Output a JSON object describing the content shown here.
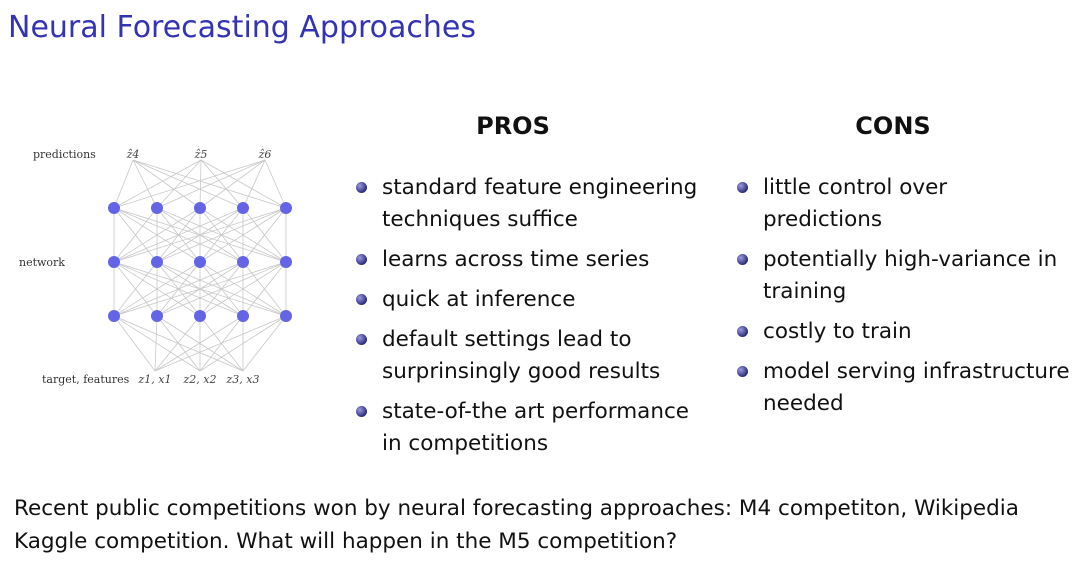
{
  "title": "Neural Forecasting Approaches",
  "diagram": {
    "labels": {
      "predictions": "predictions",
      "network": "network",
      "inputs": "target, features"
    },
    "outputs": [
      "ẑ4",
      "ẑ5",
      "ẑ6"
    ],
    "inputs": [
      "z1, x1",
      "z2, x2",
      "z3, x3"
    ],
    "node_color": "#6464e6"
  },
  "pros": {
    "heading": "PROS",
    "items": [
      [
        "standard feature engineering",
        "techniques suffice"
      ],
      [
        "learns across time series"
      ],
      [
        "quick at inference"
      ],
      [
        "default settings lead to",
        "surprinsingly good results"
      ],
      [
        "state-of-the art performance",
        "in competitions"
      ]
    ]
  },
  "cons": {
    "heading": "CONS",
    "items": [
      [
        "little control over",
        "predictions"
      ],
      [
        "potentially high-variance in",
        "training"
      ],
      [
        "costly to train"
      ],
      [
        "model serving infrastructure",
        "needed"
      ]
    ]
  },
  "footer": {
    "line1": "Recent public competitions won by neural forecasting approaches: M4 competiton, Wikipedia",
    "line2": "Kaggle competition. What will happen in the M5 competition?"
  }
}
